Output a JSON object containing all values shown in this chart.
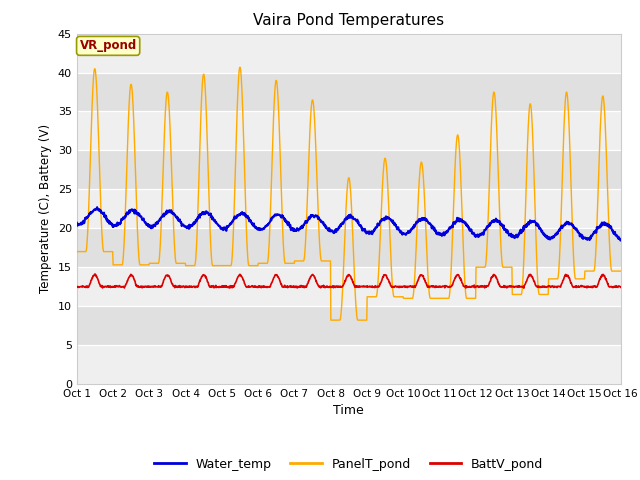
{
  "title": "Vaira Pond Temperatures",
  "xlabel": "Time",
  "ylabel": "Temperature (C), Battery (V)",
  "xlim": [
    0,
    15
  ],
  "ylim": [
    0,
    45
  ],
  "yticks": [
    0,
    5,
    10,
    15,
    20,
    25,
    30,
    35,
    40,
    45
  ],
  "xtick_labels": [
    "Oct 1",
    "Oct 2",
    "Oct 3",
    "Oct 4",
    "Oct 5",
    "Oct 6",
    "Oct 7",
    "Oct 8",
    "Oct 9",
    "Oct 10",
    "Oct 11",
    "Oct 12",
    "Oct 13",
    "Oct 14",
    "Oct 15",
    "Oct 16"
  ],
  "annotation_text": "VR_pond",
  "annotation_color": "#990000",
  "annotation_bg": "#ffffcc",
  "annotation_border": "#999900",
  "fig_bg": "#ffffff",
  "plot_bg_light": "#efefef",
  "plot_bg_dark": "#e0e0e0",
  "water_temp_color": "#0000dd",
  "panel_temp_color": "#ffaa00",
  "batt_color": "#dd0000",
  "grid_color": "#ffffff",
  "legend_labels": [
    "Water_temp",
    "PanelT_pond",
    "BattV_pond"
  ]
}
